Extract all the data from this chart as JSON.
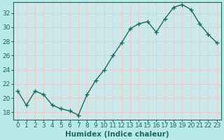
{
  "xlabel": "Humidex (Indice chaleur)",
  "ylabel": "",
  "x": [
    0,
    1,
    2,
    3,
    4,
    5,
    6,
    7,
    8,
    9,
    10,
    11,
    12,
    13,
    14,
    15,
    16,
    17,
    18,
    19,
    20,
    21,
    22,
    23
  ],
  "y": [
    21.0,
    19.0,
    21.0,
    20.5,
    19.0,
    18.5,
    18.2,
    17.6,
    20.5,
    22.5,
    24.0,
    26.0,
    27.8,
    29.8,
    30.5,
    30.8,
    29.3,
    31.2,
    32.8,
    33.2,
    32.5,
    30.5,
    29.0,
    27.8
  ],
  "line_color": "#1a6b5a",
  "marker_color": "#1a6b5a",
  "bg_color": "#b8e8e8",
  "grid_color": "#d8d8d8",
  "plot_bg": "#cce8ea",
  "ylim": [
    17.0,
    33.5
  ],
  "xlim": [
    -0.5,
    23.5
  ],
  "yticks": [
    18,
    20,
    22,
    24,
    26,
    28,
    30,
    32
  ],
  "tick_fontsize": 6.5,
  "xlabel_fontsize": 7.5
}
